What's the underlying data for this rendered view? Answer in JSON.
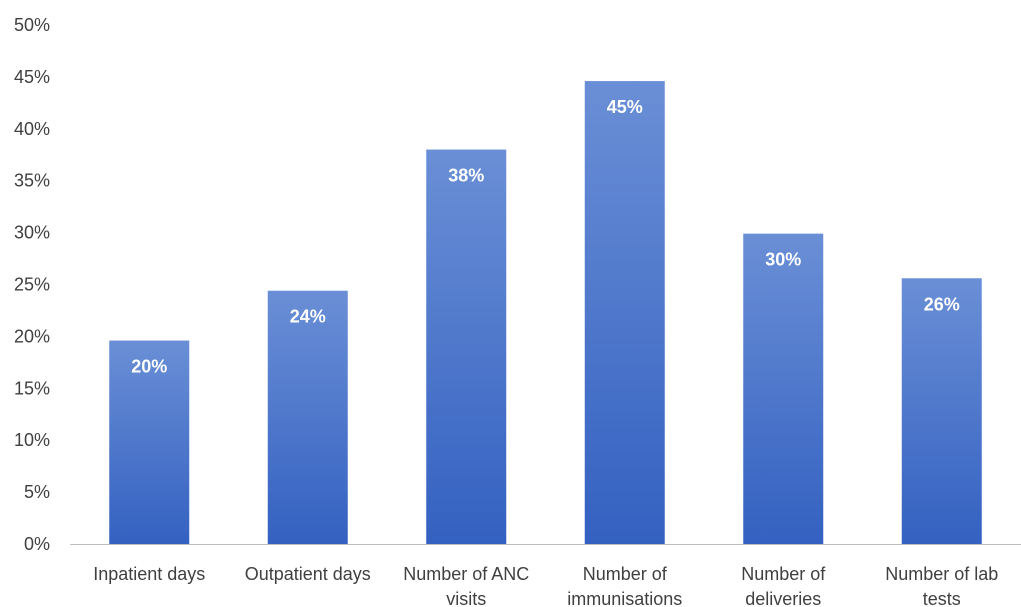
{
  "chart_data": {
    "type": "bar",
    "categories": [
      [
        "Inpatient days"
      ],
      [
        "Outpatient days"
      ],
      [
        "Number of ANC",
        "visits"
      ],
      [
        "Number of",
        "immunisations"
      ],
      [
        "Number of",
        "deliveries"
      ],
      [
        "Number of lab",
        "tests"
      ]
    ],
    "values": [
      19.6,
      24.4,
      38.0,
      44.6,
      29.9,
      25.6
    ],
    "data_labels": [
      "20%",
      "24%",
      "38%",
      "45%",
      "30%",
      "26%"
    ],
    "y_ticks": [
      "0%",
      "5%",
      "10%",
      "15%",
      "20%",
      "25%",
      "30%",
      "35%",
      "40%",
      "45%",
      "50%"
    ],
    "ylim": [
      0,
      50
    ],
    "grid": false,
    "bar_color_top": "#6a8fd6",
    "bar_color_bottom": "#3461c1",
    "title": "",
    "xlabel": "",
    "ylabel": ""
  }
}
